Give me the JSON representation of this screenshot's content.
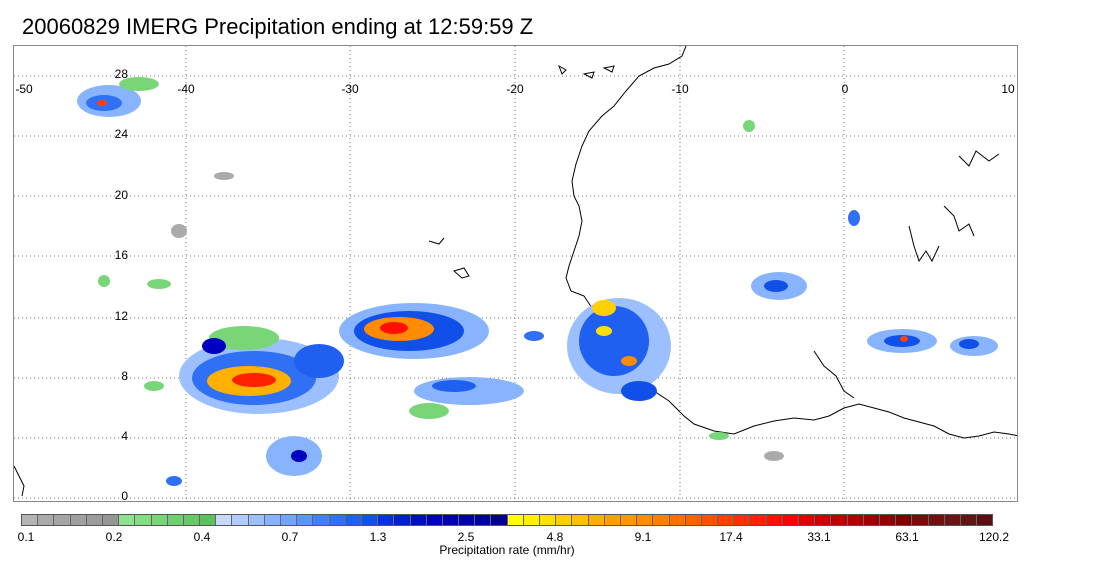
{
  "title": "20060829 IMERG Precipitation ending at 12:59:59 Z",
  "lon_labels": [
    "-50",
    "-40",
    "-30",
    "-20",
    "-10",
    "0",
    "10"
  ],
  "lat_labels": [
    "28",
    "24",
    "20",
    "16",
    "12",
    "8",
    "4",
    "0"
  ],
  "colorbar": {
    "title": "Precipitation rate (mm/hr)",
    "ticks": [
      "0.1",
      "0.2",
      "0.4",
      "0.7",
      "1.3",
      "2.5",
      "4.8",
      "9.1",
      "17.4",
      "33.1",
      "63.1",
      "120.2"
    ],
    "colors": [
      "#b4b4b4",
      "#aaaaaa",
      "#a5a5a5",
      "#a0a0a0",
      "#9b9b9b",
      "#969696",
      "#8ee28e",
      "#82dc82",
      "#78d678",
      "#6fcf6f",
      "#66c866",
      "#5cc05c",
      "#c8d8ff",
      "#b0ccff",
      "#9cc0ff",
      "#88b4ff",
      "#70a4ff",
      "#5a94ff",
      "#4080ff",
      "#3070f5",
      "#2060f0",
      "#1050e8",
      "#0030e0",
      "#0020d0",
      "#0010c0",
      "#0000c0",
      "#0000b0",
      "#0000a8",
      "#0000a0",
      "#000090",
      "#ffff00",
      "#fff000",
      "#ffe000",
      "#ffd000",
      "#ffc000",
      "#ffb000",
      "#ffa000",
      "#ff9600",
      "#ff8c00",
      "#ff8000",
      "#ff7000",
      "#ff6000",
      "#ff5000",
      "#ff4000",
      "#ff3000",
      "#ff2000",
      "#ff1000",
      "#ff0000",
      "#e00000",
      "#d00000",
      "#c00000",
      "#b00000",
      "#a00000",
      "#900000",
      "#800000",
      "#780a0a",
      "#701010",
      "#6a1414",
      "#601414",
      "#5a1010"
    ]
  }
}
